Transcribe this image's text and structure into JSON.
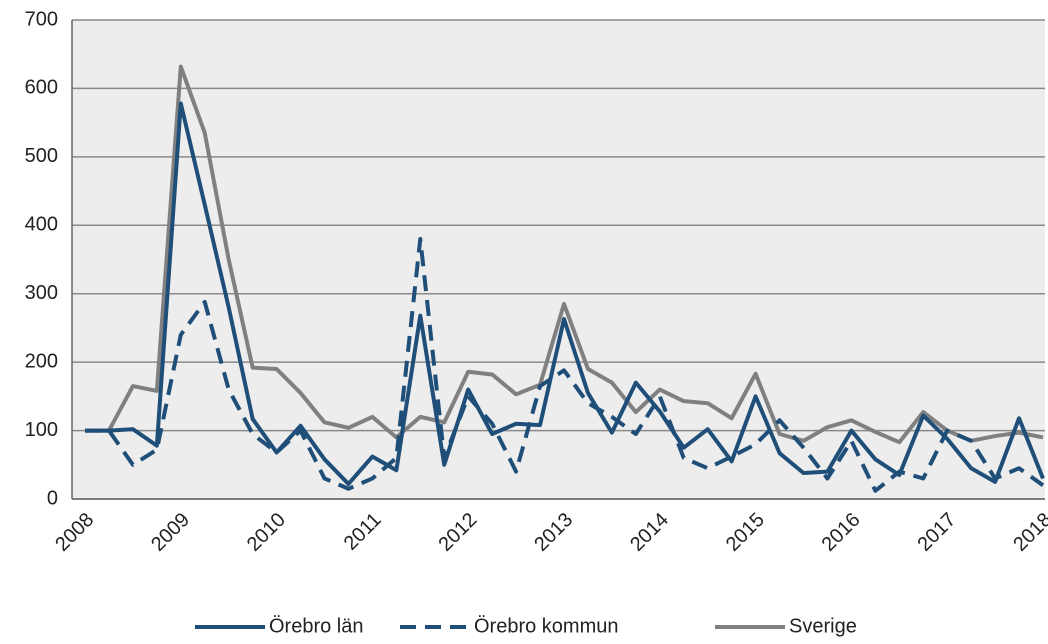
{
  "chart_data": {
    "type": "line",
    "categories": [
      "2008",
      null,
      null,
      null,
      "2009",
      null,
      null,
      null,
      "2010",
      null,
      null,
      null,
      "2011",
      null,
      null,
      null,
      "2012",
      null,
      null,
      null,
      "2013",
      null,
      null,
      null,
      "2014",
      null,
      null,
      null,
      "2015",
      null,
      null,
      null,
      "2016",
      null,
      null,
      null,
      "2017",
      null,
      null,
      null,
      "2018"
    ],
    "series": [
      {
        "name": "Örebro län",
        "color": "#1f4e79",
        "dash": false,
        "values": [
          100,
          100,
          102,
          78,
          578,
          430,
          280,
          117,
          68,
          107,
          58,
          22,
          62,
          42,
          268,
          50,
          160,
          95,
          110,
          108,
          263,
          155,
          97,
          170,
          128,
          75,
          102,
          55,
          150,
          67,
          38,
          40,
          100,
          58,
          35,
          122,
          88,
          45,
          25,
          118,
          30
        ]
      },
      {
        "name": "Örebro kommun",
        "color": "#1f4e79",
        "dash": true,
        "values": [
          100,
          100,
          50,
          72,
          240,
          288,
          160,
          95,
          68,
          100,
          30,
          15,
          30,
          60,
          380,
          60,
          150,
          110,
          40,
          165,
          188,
          140,
          120,
          95,
          150,
          60,
          45,
          62,
          80,
          115,
          75,
          30,
          85,
          12,
          40,
          30,
          100,
          85,
          30,
          45,
          20
        ]
      },
      {
        "name": "Sverige",
        "color": "#808080",
        "dash": false,
        "values": [
          100,
          100,
          165,
          158,
          632,
          535,
          350,
          192,
          190,
          155,
          112,
          104,
          120,
          90,
          120,
          112,
          186,
          182,
          153,
          167,
          285,
          190,
          170,
          127,
          160,
          143,
          140,
          118,
          183,
          95,
          85,
          105,
          115,
          98,
          83,
          127,
          100,
          85,
          92,
          97,
          90
        ]
      }
    ],
    "ylim": [
      0,
      700
    ],
    "yticks": [
      0,
      100,
      200,
      300,
      400,
      500,
      600,
      700
    ],
    "grid": true
  }
}
